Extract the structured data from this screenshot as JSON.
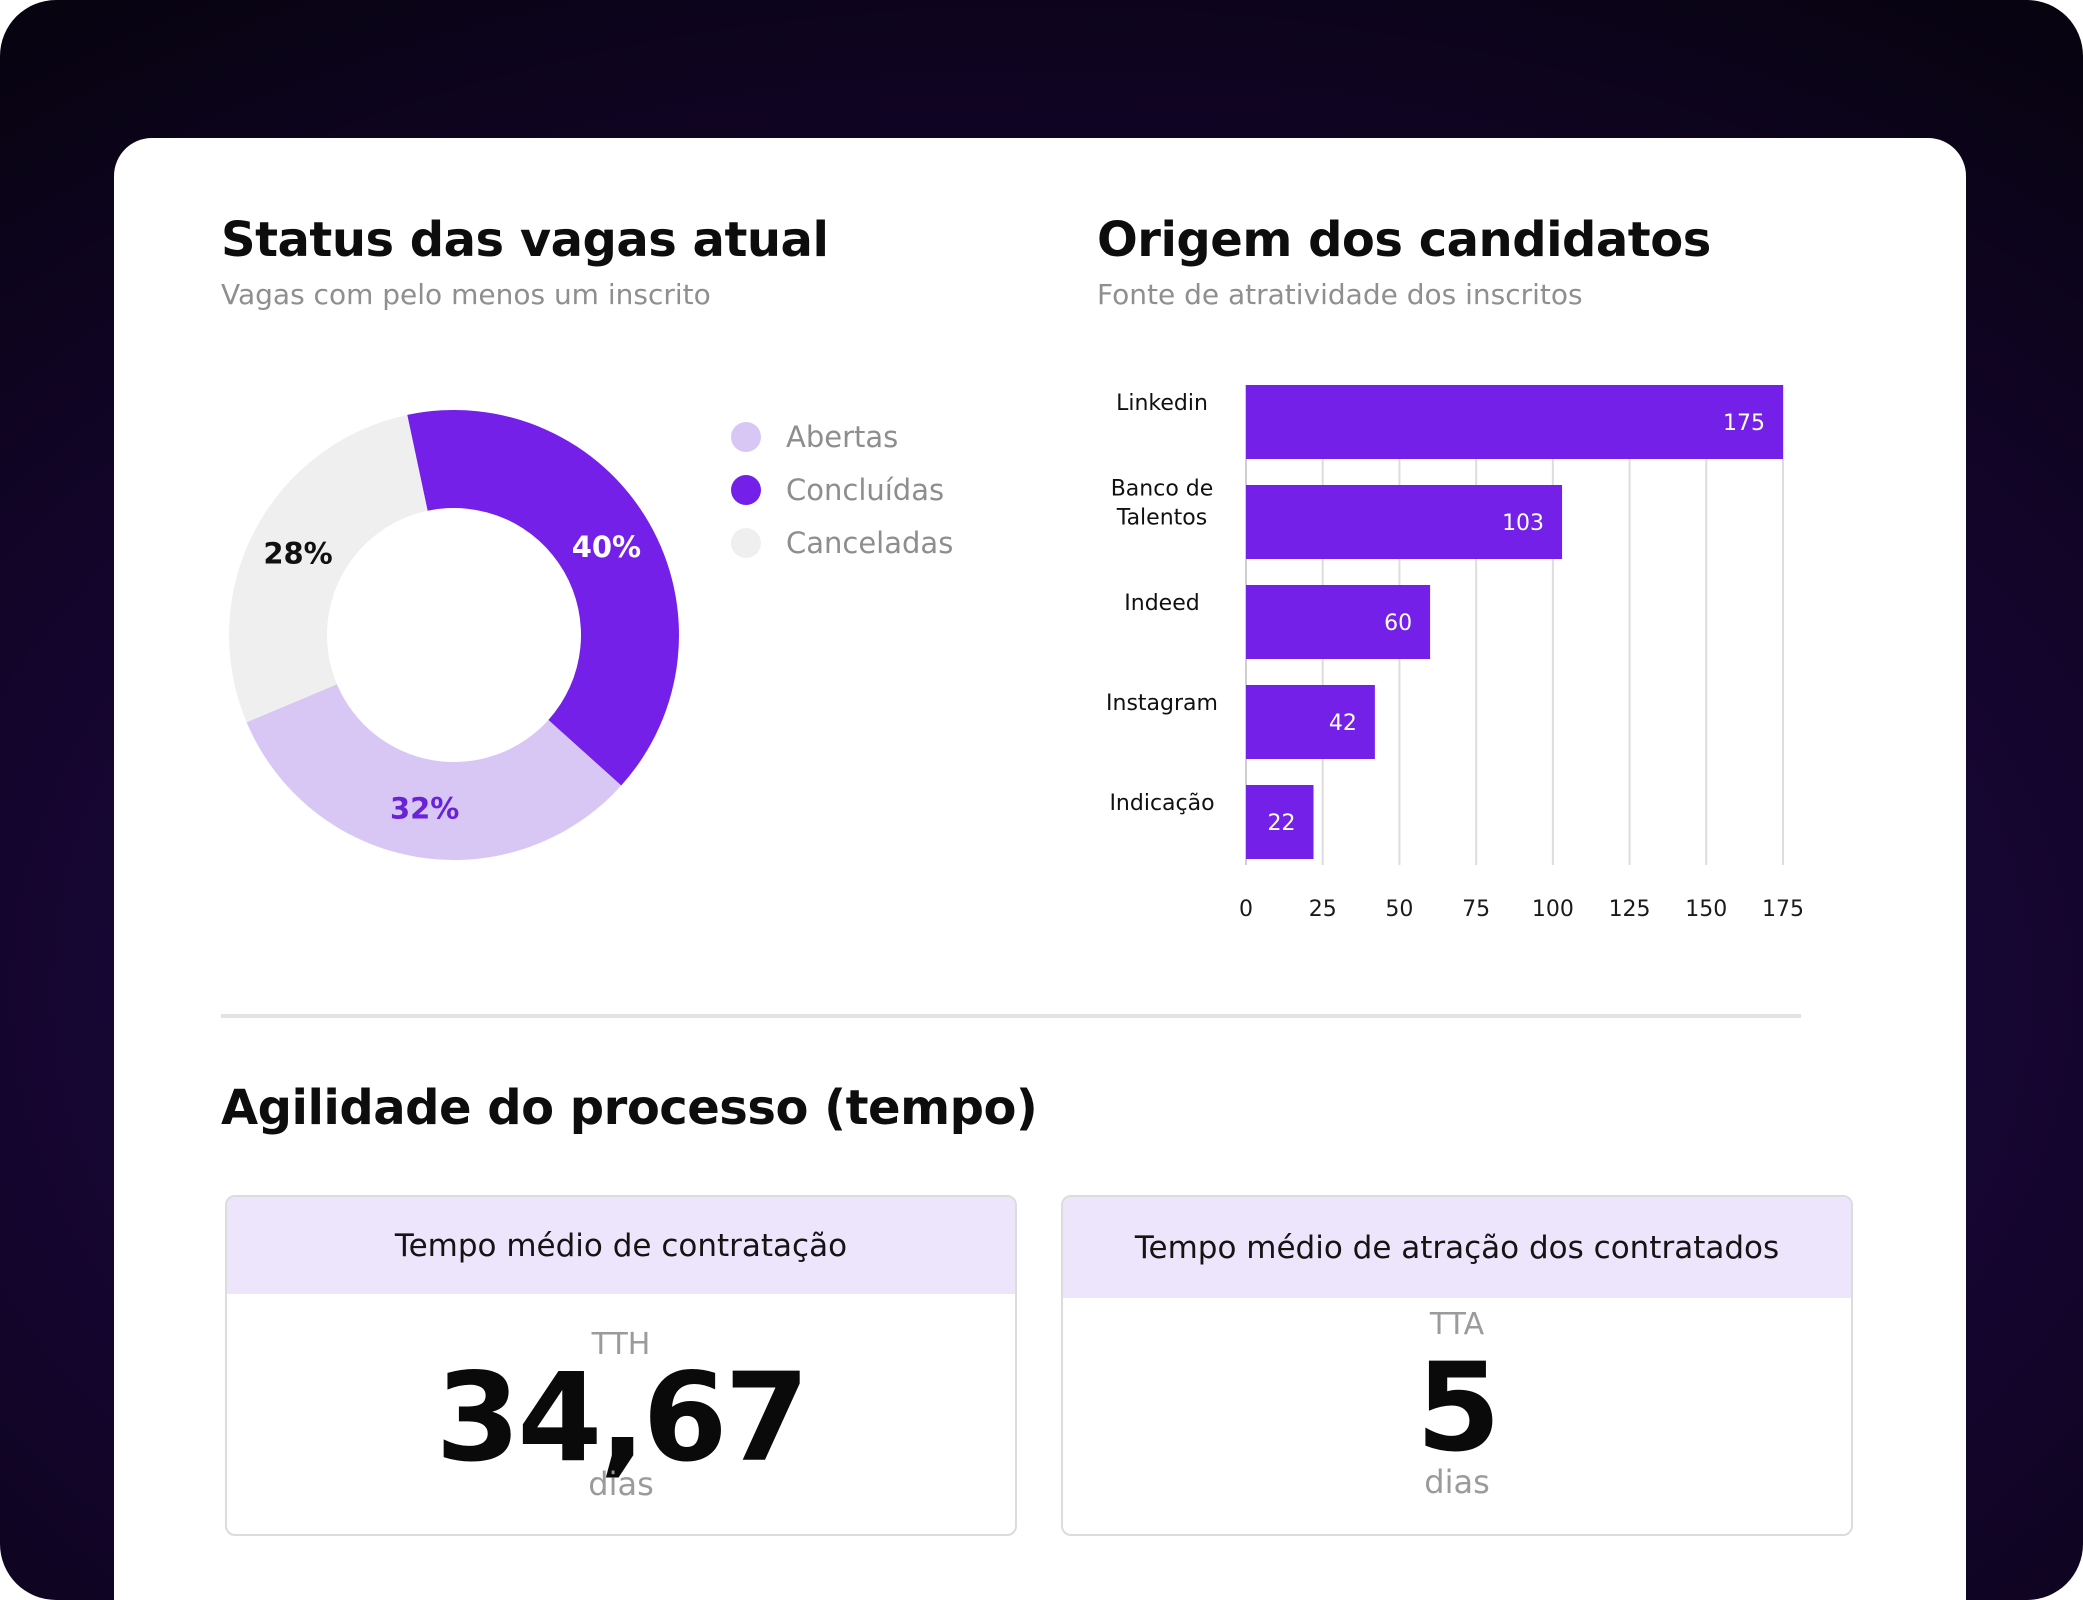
{
  "status_section": {
    "title": "Status das vagas atual",
    "subtitle": "Vagas com pelo menos um inscrito",
    "legend": [
      {
        "label": "Abertas",
        "color": "#d8c7f5"
      },
      {
        "label": "Concluídas",
        "color": "#7420e8"
      },
      {
        "label": "Canceladas",
        "color": "#efefef"
      }
    ]
  },
  "origem_section": {
    "title": "Origem dos candidatos",
    "subtitle": "Fonte de atratividade dos inscritos"
  },
  "agilidade_section": {
    "title": "Agilidade do processo (tempo)",
    "cards": [
      {
        "header": "Tempo médio de contratação",
        "abbr": "TTH",
        "value": "34,67",
        "unit": "dias"
      },
      {
        "header": "Tempo médio de atração dos contratados",
        "abbr": "TTA",
        "value": "5",
        "unit": "dias"
      }
    ]
  },
  "chart_data": [
    {
      "type": "pie",
      "variant": "donut",
      "slices": [
        {
          "name": "Concluídas",
          "value": 40,
          "label": "40%",
          "color": "#7420e8",
          "label_color": "#ffffff"
        },
        {
          "name": "Abertas",
          "value": 32,
          "label": "32%",
          "color": "#d8c7f5",
          "label_color": "#6a22d6"
        },
        {
          "name": "Canceladas",
          "value": 28,
          "label": "28%",
          "color": "#efefef",
          "label_color": "#111111"
        }
      ],
      "legend_position": "right"
    },
    {
      "type": "bar",
      "orientation": "horizontal",
      "categories": [
        "Linkedin",
        "Banco de Talentos",
        "Indeed",
        "Instagram",
        "Indicação"
      ],
      "category_lines": [
        [
          "Linkedin"
        ],
        [
          "Banco de",
          "Talentos"
        ],
        [
          "Indeed"
        ],
        [
          "Instagram"
        ],
        [
          "Indicação"
        ]
      ],
      "values": [
        175,
        103,
        60,
        42,
        22
      ],
      "xlim": [
        0,
        175
      ],
      "xticks": [
        0,
        25,
        50,
        75,
        100,
        125,
        150,
        175
      ],
      "grid": true,
      "bar_color": "#7420e8",
      "label_color": "#ffffff"
    }
  ]
}
